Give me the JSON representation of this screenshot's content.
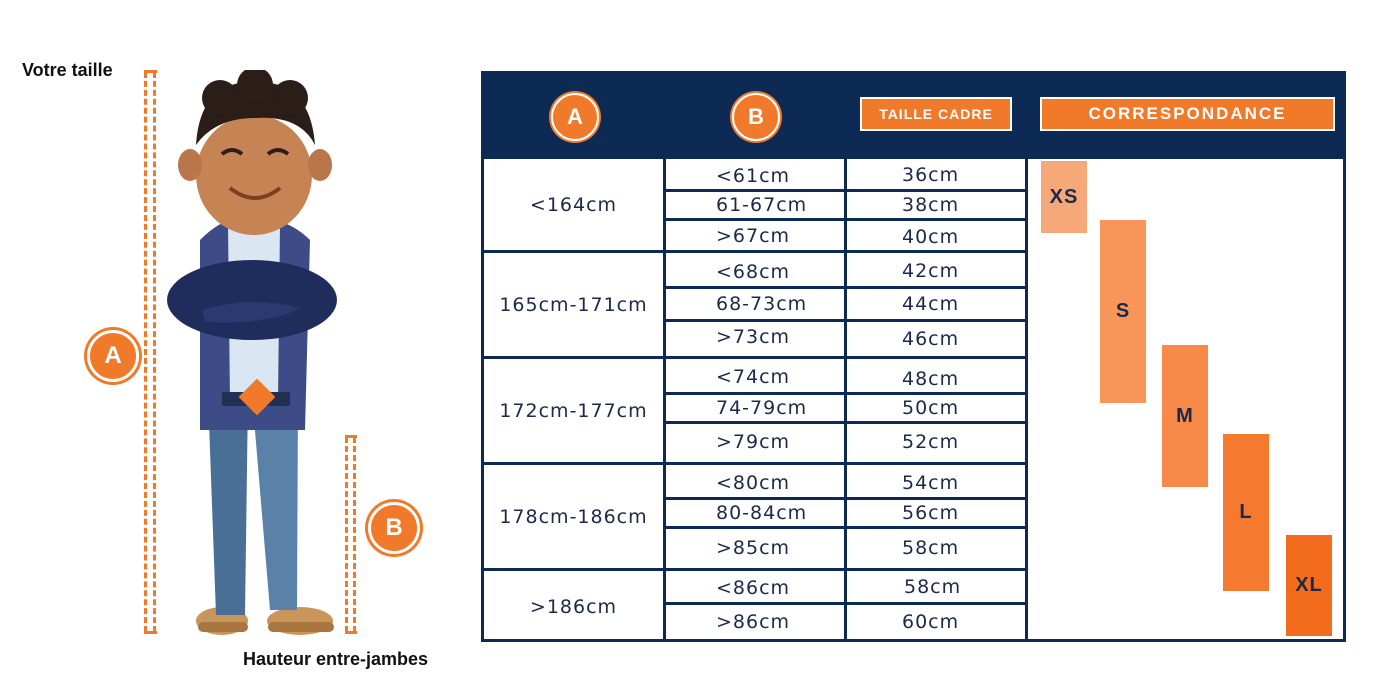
{
  "labels": {
    "height": "Votre taille",
    "inseam": "Hauteur entre-jambes"
  },
  "badges": {
    "a": "A",
    "b": "B"
  },
  "header": {
    "col_a": "A",
    "col_b": "B",
    "frame_size": "TAILLE CADRE",
    "correspondence": "CORRESPONDANCE"
  },
  "groups": [
    {
      "height": "<164cm",
      "rows": [
        {
          "inseam": "<61cm",
          "frame": "36cm"
        },
        {
          "inseam": "61-67cm",
          "frame": "38cm"
        },
        {
          "inseam": ">67cm",
          "frame": "40cm"
        }
      ]
    },
    {
      "height": "165cm-171cm",
      "rows": [
        {
          "inseam": "<68cm",
          "frame": "42cm"
        },
        {
          "inseam": "68-73cm",
          "frame": "44cm"
        },
        {
          "inseam": ">73cm",
          "frame": "46cm"
        }
      ]
    },
    {
      "height": "172cm-177cm",
      "rows": [
        {
          "inseam": "<74cm",
          "frame": "48cm"
        },
        {
          "inseam": "74-79cm",
          "frame": "50cm"
        },
        {
          "inseam": ">79cm",
          "frame": "52cm"
        }
      ]
    },
    {
      "height": "178cm-186cm",
      "rows": [
        {
          "inseam": "<80cm",
          "frame": "54cm"
        },
        {
          "inseam": "80-84cm",
          "frame": "56cm"
        },
        {
          "inseam": ">85cm",
          "frame": "58cm"
        }
      ]
    },
    {
      "height": ">186cm",
      "rows": [
        {
          "inseam": "<86cm",
          "frame": "58cm"
        },
        {
          "inseam": ">86cm",
          "frame": "60cm"
        }
      ]
    }
  ],
  "sizes": [
    {
      "label": "XS",
      "color": "#f7a878"
    },
    {
      "label": "S",
      "color": "#f8965a"
    },
    {
      "label": "M",
      "color": "#f78a48"
    },
    {
      "label": "L",
      "color": "#f57a30"
    },
    {
      "label": "XL",
      "color": "#f36b1c"
    }
  ],
  "colors": {
    "navy": "#0d2a55",
    "orange": "#f07a2a"
  }
}
